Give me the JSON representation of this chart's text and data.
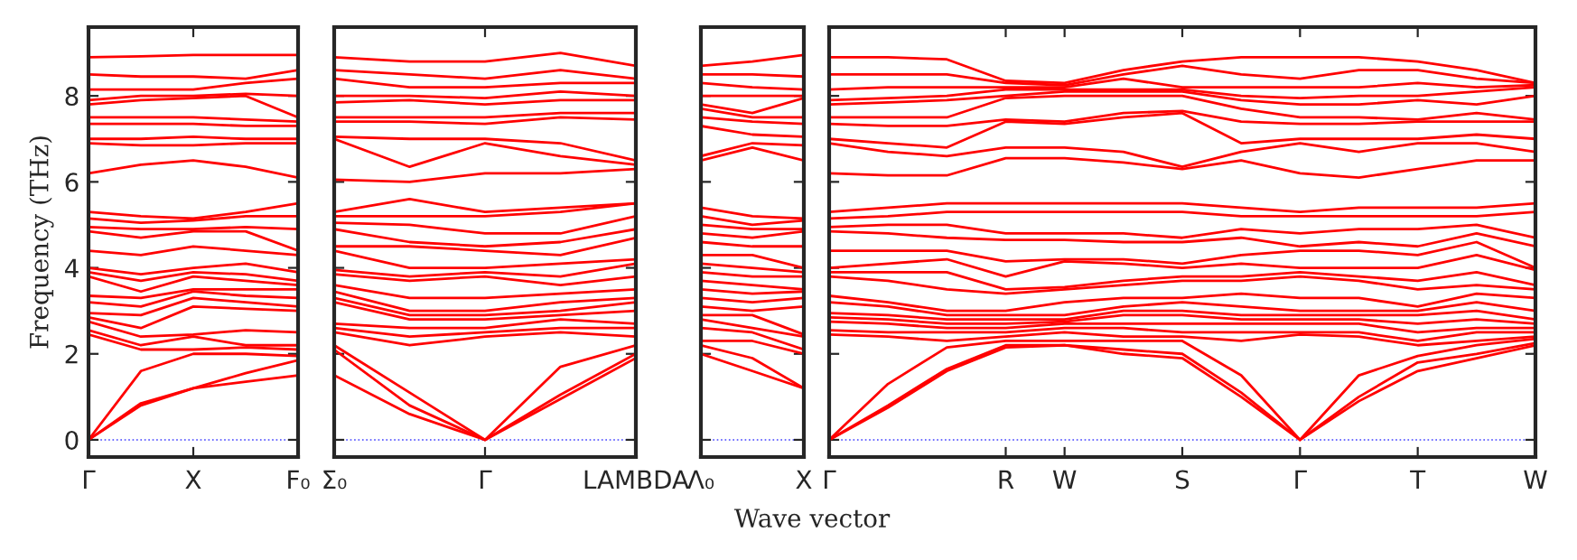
{
  "chart_data": [
    {
      "type": "line",
      "ylabel": "Frequency (THz)",
      "categories": [
        "Γ",
        null,
        "X",
        null,
        "F₀"
      ],
      "ylim": [
        -0.4,
        9.6
      ],
      "yticks": [
        0,
        2,
        4,
        6,
        8
      ],
      "ref_lines": [
        {
          "axis": "y",
          "value": 0,
          "color": "#4040ff",
          "line_style": "dotted"
        }
      ],
      "series": [
        {
          "color": "#ff0000",
          "values": [
            0,
            0.8,
            1.2,
            1.35,
            1.5
          ]
        },
        {
          "color": "#ff0000",
          "values": [
            0,
            0.85,
            1.2,
            1.55,
            1.85
          ]
        },
        {
          "color": "#ff0000",
          "values": [
            0,
            1.6,
            2.0,
            2.0,
            1.95
          ]
        },
        {
          "color": "#ff0000",
          "values": [
            2.45,
            2.1,
            2.1,
            2.15,
            2.1
          ]
        },
        {
          "color": "#ff0000",
          "values": [
            2.55,
            2.2,
            2.4,
            2.2,
            2.2
          ]
        },
        {
          "color": "#ff0000",
          "values": [
            2.75,
            2.4,
            2.45,
            2.55,
            2.5
          ]
        },
        {
          "color": "#ff0000",
          "values": [
            2.85,
            2.6,
            3.1,
            3.05,
            3.0
          ]
        },
        {
          "color": "#ff0000",
          "values": [
            2.95,
            2.9,
            3.3,
            3.2,
            3.1
          ]
        },
        {
          "color": "#ff0000",
          "values": [
            3.2,
            3.1,
            3.45,
            3.35,
            3.3
          ]
        },
        {
          "color": "#ff0000",
          "values": [
            3.35,
            3.3,
            3.5,
            3.5,
            3.5
          ]
        },
        {
          "color": "#ff0000",
          "values": [
            3.8,
            3.45,
            3.8,
            3.7,
            3.6
          ]
        },
        {
          "color": "#ff0000",
          "values": [
            3.9,
            3.7,
            3.9,
            3.85,
            3.7
          ]
        },
        {
          "color": "#ff0000",
          "values": [
            4.0,
            3.85,
            4.0,
            4.1,
            3.9
          ]
        },
        {
          "color": "#ff0000",
          "values": [
            4.4,
            4.3,
            4.5,
            4.4,
            4.3
          ]
        },
        {
          "color": "#ff0000",
          "values": [
            4.85,
            4.7,
            4.85,
            4.85,
            4.4
          ]
        },
        {
          "color": "#ff0000",
          "values": [
            4.95,
            4.9,
            4.9,
            4.95,
            4.9
          ]
        },
        {
          "color": "#ff0000",
          "values": [
            5.15,
            5.05,
            5.1,
            5.2,
            5.2
          ]
        },
        {
          "color": "#ff0000",
          "values": [
            5.3,
            5.2,
            5.15,
            5.3,
            5.5
          ]
        },
        {
          "color": "#ff0000",
          "values": [
            6.2,
            6.4,
            6.5,
            6.35,
            6.1
          ]
        },
        {
          "color": "#ff0000",
          "values": [
            6.9,
            6.85,
            6.85,
            6.9,
            6.9
          ]
        },
        {
          "color": "#ff0000",
          "values": [
            7.0,
            7.0,
            7.05,
            7.0,
            7.0
          ]
        },
        {
          "color": "#ff0000",
          "values": [
            7.35,
            7.35,
            7.35,
            7.3,
            7.3
          ]
        },
        {
          "color": "#ff0000",
          "values": [
            7.5,
            7.5,
            7.5,
            7.45,
            7.4
          ]
        },
        {
          "color": "#ff0000",
          "values": [
            7.8,
            7.9,
            7.95,
            8.0,
            7.5
          ]
        },
        {
          "color": "#ff0000",
          "values": [
            7.9,
            8.0,
            8.0,
            8.05,
            8.0
          ]
        },
        {
          "color": "#ff0000",
          "values": [
            8.15,
            8.15,
            8.15,
            8.3,
            8.4
          ]
        },
        {
          "color": "#ff0000",
          "values": [
            8.5,
            8.45,
            8.45,
            8.4,
            8.6
          ]
        },
        {
          "color": "#ff0000",
          "values": [
            8.9,
            8.92,
            8.95,
            8.95,
            8.95
          ]
        }
      ]
    },
    {
      "type": "line",
      "tick_labels": "x",
      "categories": [
        "Σ₀",
        null,
        "Γ",
        null,
        "LAMBDA"
      ],
      "ylim": [
        -0.4,
        9.6
      ],
      "yticks": [
        0,
        2,
        4,
        6,
        8
      ],
      "ref_lines": [
        {
          "axis": "y",
          "value": 0,
          "color": "#4040ff",
          "line_style": "dotted"
        }
      ],
      "series": [
        {
          "color": "#ff0000",
          "values": [
            1.5,
            0.6,
            0,
            0.95,
            1.9
          ]
        },
        {
          "color": "#ff0000",
          "values": [
            2.1,
            0.8,
            0,
            1.05,
            2.0
          ]
        },
        {
          "color": "#ff0000",
          "values": [
            2.2,
            1.1,
            0,
            1.7,
            2.2
          ]
        },
        {
          "color": "#ff0000",
          "values": [
            2.5,
            2.2,
            2.4,
            2.5,
            2.4
          ]
        },
        {
          "color": "#ff0000",
          "values": [
            2.6,
            2.4,
            2.5,
            2.6,
            2.6
          ]
        },
        {
          "color": "#ff0000",
          "values": [
            2.7,
            2.6,
            2.6,
            2.8,
            2.7
          ]
        },
        {
          "color": "#ff0000",
          "values": [
            3.2,
            2.8,
            2.8,
            2.9,
            3.0
          ]
        },
        {
          "color": "#ff0000",
          "values": [
            3.3,
            2.9,
            2.9,
            3.0,
            3.2
          ]
        },
        {
          "color": "#ff0000",
          "values": [
            3.45,
            3.0,
            3.0,
            3.2,
            3.3
          ]
        },
        {
          "color": "#ff0000",
          "values": [
            3.6,
            3.3,
            3.3,
            3.4,
            3.5
          ]
        },
        {
          "color": "#ff0000",
          "values": [
            3.85,
            3.7,
            3.8,
            3.6,
            3.8
          ]
        },
        {
          "color": "#ff0000",
          "values": [
            3.95,
            3.8,
            3.9,
            3.8,
            4.1
          ]
        },
        {
          "color": "#ff0000",
          "values": [
            4.4,
            4.0,
            4.0,
            4.1,
            4.2
          ]
        },
        {
          "color": "#ff0000",
          "values": [
            4.5,
            4.5,
            4.4,
            4.3,
            4.7
          ]
        },
        {
          "color": "#ff0000",
          "values": [
            4.9,
            4.6,
            4.5,
            4.6,
            4.9
          ]
        },
        {
          "color": "#ff0000",
          "values": [
            5.05,
            5.0,
            4.8,
            4.8,
            5.2
          ]
        },
        {
          "color": "#ff0000",
          "values": [
            5.2,
            5.2,
            5.2,
            5.3,
            5.5
          ]
        },
        {
          "color": "#ff0000",
          "values": [
            5.3,
            5.6,
            5.3,
            5.4,
            5.5
          ]
        },
        {
          "color": "#ff0000",
          "values": [
            6.05,
            6.0,
            6.2,
            6.2,
            6.3
          ]
        },
        {
          "color": "#ff0000",
          "values": [
            7.0,
            6.35,
            6.9,
            6.6,
            6.4
          ]
        },
        {
          "color": "#ff0000",
          "values": [
            7.05,
            7.0,
            7.0,
            6.9,
            6.5
          ]
        },
        {
          "color": "#ff0000",
          "values": [
            7.4,
            7.4,
            7.35,
            7.5,
            7.45
          ]
        },
        {
          "color": "#ff0000",
          "values": [
            7.5,
            7.5,
            7.5,
            7.6,
            7.6
          ]
        },
        {
          "color": "#ff0000",
          "values": [
            7.85,
            7.9,
            7.8,
            7.9,
            7.9
          ]
        },
        {
          "color": "#ff0000",
          "values": [
            8.0,
            8.0,
            7.95,
            8.1,
            8.0
          ]
        },
        {
          "color": "#ff0000",
          "values": [
            8.4,
            8.2,
            8.2,
            8.3,
            8.3
          ]
        },
        {
          "color": "#ff0000",
          "values": [
            8.6,
            8.5,
            8.4,
            8.6,
            8.4
          ]
        },
        {
          "color": "#ff0000",
          "values": [
            8.9,
            8.8,
            8.8,
            9.0,
            8.7
          ]
        }
      ]
    },
    {
      "type": "line",
      "tick_labels": "x",
      "categories": [
        "Λ₀",
        null,
        "X"
      ],
      "ylim": [
        -0.4,
        9.6
      ],
      "yticks": [
        0,
        2,
        4,
        6,
        8
      ],
      "ref_lines": [
        {
          "axis": "y",
          "value": 0,
          "color": "#4040ff",
          "line_style": "dotted"
        }
      ],
      "series": [
        {
          "color": "#ff0000",
          "values": [
            2.0,
            1.6,
            1.2
          ]
        },
        {
          "color": "#ff0000",
          "values": [
            2.2,
            1.9,
            1.2
          ]
        },
        {
          "color": "#ff0000",
          "values": [
            2.3,
            2.3,
            2.0
          ]
        },
        {
          "color": "#ff0000",
          "values": [
            2.6,
            2.5,
            2.1
          ]
        },
        {
          "color": "#ff0000",
          "values": [
            2.8,
            2.6,
            2.4
          ]
        },
        {
          "color": "#ff0000",
          "values": [
            2.9,
            2.9,
            2.45
          ]
        },
        {
          "color": "#ff0000",
          "values": [
            3.1,
            3.0,
            3.1
          ]
        },
        {
          "color": "#ff0000",
          "values": [
            3.3,
            3.2,
            3.3
          ]
        },
        {
          "color": "#ff0000",
          "values": [
            3.5,
            3.4,
            3.45
          ]
        },
        {
          "color": "#ff0000",
          "values": [
            3.7,
            3.6,
            3.5
          ]
        },
        {
          "color": "#ff0000",
          "values": [
            3.9,
            3.8,
            3.8
          ]
        },
        {
          "color": "#ff0000",
          "values": [
            4.1,
            4.0,
            3.9
          ]
        },
        {
          "color": "#ff0000",
          "values": [
            4.3,
            4.3,
            4.0
          ]
        },
        {
          "color": "#ff0000",
          "values": [
            4.6,
            4.5,
            4.5
          ]
        },
        {
          "color": "#ff0000",
          "values": [
            4.8,
            4.7,
            4.85
          ]
        },
        {
          "color": "#ff0000",
          "values": [
            5.0,
            4.9,
            4.9
          ]
        },
        {
          "color": "#ff0000",
          "values": [
            5.2,
            5.0,
            5.1
          ]
        },
        {
          "color": "#ff0000",
          "values": [
            5.4,
            5.2,
            5.15
          ]
        },
        {
          "color": "#ff0000",
          "values": [
            6.5,
            6.8,
            6.5
          ]
        },
        {
          "color": "#ff0000",
          "values": [
            6.6,
            6.9,
            6.85
          ]
        },
        {
          "color": "#ff0000",
          "values": [
            7.3,
            7.1,
            7.05
          ]
        },
        {
          "color": "#ff0000",
          "values": [
            7.5,
            7.4,
            7.35
          ]
        },
        {
          "color": "#ff0000",
          "values": [
            7.7,
            7.5,
            7.5
          ]
        },
        {
          "color": "#ff0000",
          "values": [
            7.8,
            7.6,
            7.95
          ]
        },
        {
          "color": "#ff0000",
          "values": [
            8.0,
            8.0,
            8.0
          ]
        },
        {
          "color": "#ff0000",
          "values": [
            8.3,
            8.2,
            8.15
          ]
        },
        {
          "color": "#ff0000",
          "values": [
            8.5,
            8.5,
            8.45
          ]
        },
        {
          "color": "#ff0000",
          "values": [
            8.7,
            8.8,
            8.95
          ]
        }
      ]
    },
    {
      "type": "line",
      "tick_labels": "x",
      "xlabel": "Wave vector",
      "categories": [
        "Γ",
        null,
        null,
        "R",
        "W",
        null,
        "S",
        null,
        "Γ",
        null,
        "T",
        null,
        "W"
      ],
      "ylim": [
        -0.4,
        9.6
      ],
      "yticks": [
        0,
        2,
        4,
        6,
        8
      ],
      "ref_lines": [
        {
          "axis": "y",
          "value": 0,
          "color": "#4040ff",
          "line_style": "dotted"
        }
      ],
      "series": [
        {
          "color": "#ff0000",
          "values": [
            0,
            0.75,
            1.6,
            2.15,
            2.2,
            2.0,
            1.9,
            1.0,
            0,
            0.9,
            1.6,
            1.9,
            2.2
          ]
        },
        {
          "color": "#ff0000",
          "values": [
            0,
            0.8,
            1.65,
            2.2,
            2.2,
            2.1,
            2.0,
            1.1,
            0,
            1.0,
            1.8,
            2.0,
            2.25
          ]
        },
        {
          "color": "#ff0000",
          "values": [
            0,
            1.3,
            2.15,
            2.3,
            2.3,
            2.3,
            2.3,
            1.5,
            0,
            1.5,
            1.95,
            2.2,
            2.35
          ]
        },
        {
          "color": "#ff0000",
          "values": [
            2.45,
            2.4,
            2.3,
            2.4,
            2.5,
            2.4,
            2.4,
            2.3,
            2.45,
            2.4,
            2.2,
            2.3,
            2.4
          ]
        },
        {
          "color": "#ff0000",
          "values": [
            2.55,
            2.5,
            2.5,
            2.5,
            2.6,
            2.6,
            2.5,
            2.5,
            2.5,
            2.5,
            2.3,
            2.5,
            2.5
          ]
        },
        {
          "color": "#ff0000",
          "values": [
            2.75,
            2.7,
            2.6,
            2.6,
            2.7,
            2.7,
            2.7,
            2.7,
            2.7,
            2.7,
            2.5,
            2.6,
            2.6
          ]
        },
        {
          "color": "#ff0000",
          "values": [
            2.85,
            2.8,
            2.7,
            2.7,
            2.75,
            2.9,
            2.9,
            2.8,
            2.8,
            2.8,
            2.7,
            2.8,
            2.7
          ]
        },
        {
          "color": "#ff0000",
          "values": [
            2.95,
            2.9,
            2.8,
            2.8,
            2.8,
            3.0,
            3.0,
            2.9,
            2.9,
            2.9,
            2.9,
            3.0,
            2.8
          ]
        },
        {
          "color": "#ff0000",
          "values": [
            3.2,
            3.1,
            2.9,
            2.9,
            2.9,
            3.1,
            3.2,
            3.1,
            3.0,
            3.0,
            3.0,
            3.2,
            3.0
          ]
        },
        {
          "color": "#ff0000",
          "values": [
            3.35,
            3.2,
            3.0,
            3.0,
            3.2,
            3.3,
            3.3,
            3.4,
            3.3,
            3.3,
            3.1,
            3.4,
            3.3
          ]
        },
        {
          "color": "#ff0000",
          "values": [
            3.8,
            3.7,
            3.5,
            3.4,
            3.5,
            3.6,
            3.7,
            3.7,
            3.8,
            3.7,
            3.5,
            3.6,
            3.5
          ]
        },
        {
          "color": "#ff0000",
          "values": [
            3.9,
            3.9,
            3.9,
            3.5,
            3.55,
            3.7,
            3.8,
            3.8,
            3.9,
            3.8,
            3.7,
            3.9,
            3.6
          ]
        },
        {
          "color": "#ff0000",
          "values": [
            4.0,
            4.1,
            4.2,
            3.8,
            4.15,
            4.1,
            4.0,
            4.1,
            4.0,
            4.0,
            4.0,
            4.3,
            3.95
          ]
        },
        {
          "color": "#ff0000",
          "values": [
            4.4,
            4.4,
            4.4,
            4.15,
            4.2,
            4.2,
            4.1,
            4.3,
            4.4,
            4.4,
            4.3,
            4.6,
            4.0
          ]
        },
        {
          "color": "#ff0000",
          "values": [
            4.85,
            4.8,
            4.7,
            4.65,
            4.65,
            4.6,
            4.6,
            4.7,
            4.5,
            4.6,
            4.5,
            4.8,
            4.5
          ]
        },
        {
          "color": "#ff0000",
          "values": [
            4.95,
            5.0,
            5.0,
            4.8,
            4.8,
            4.8,
            4.7,
            4.9,
            4.8,
            4.9,
            4.9,
            5.0,
            4.7
          ]
        },
        {
          "color": "#ff0000",
          "values": [
            5.15,
            5.2,
            5.3,
            5.3,
            5.3,
            5.3,
            5.3,
            5.2,
            5.2,
            5.2,
            5.2,
            5.2,
            5.3
          ]
        },
        {
          "color": "#ff0000",
          "values": [
            5.3,
            5.4,
            5.5,
            5.5,
            5.5,
            5.5,
            5.5,
            5.4,
            5.3,
            5.4,
            5.4,
            5.4,
            5.5
          ]
        },
        {
          "color": "#ff0000",
          "values": [
            6.2,
            6.15,
            6.15,
            6.55,
            6.55,
            6.45,
            6.3,
            6.5,
            6.2,
            6.1,
            6.3,
            6.5,
            6.5
          ]
        },
        {
          "color": "#ff0000",
          "values": [
            6.9,
            6.7,
            6.6,
            6.8,
            6.8,
            6.7,
            6.35,
            6.7,
            6.9,
            6.7,
            6.9,
            6.9,
            6.7
          ]
        },
        {
          "color": "#ff0000",
          "values": [
            7.0,
            6.9,
            6.8,
            7.4,
            7.35,
            7.5,
            7.6,
            6.9,
            7.0,
            7.0,
            7.0,
            7.1,
            7.0
          ]
        },
        {
          "color": "#ff0000",
          "values": [
            7.35,
            7.3,
            7.3,
            7.45,
            7.4,
            7.6,
            7.65,
            7.4,
            7.35,
            7.35,
            7.4,
            7.4,
            7.4
          ]
        },
        {
          "color": "#ff0000",
          "values": [
            7.5,
            7.5,
            7.5,
            7.95,
            8.0,
            8.0,
            8.0,
            7.7,
            7.5,
            7.5,
            7.45,
            7.6,
            7.45
          ]
        },
        {
          "color": "#ff0000",
          "values": [
            7.8,
            7.85,
            7.9,
            8.0,
            8.1,
            8.1,
            8.1,
            7.9,
            7.8,
            7.8,
            7.9,
            7.8,
            8.0
          ]
        },
        {
          "color": "#ff0000",
          "values": [
            7.9,
            7.95,
            8.0,
            8.15,
            8.15,
            8.15,
            8.15,
            8.0,
            7.95,
            8.0,
            8.0,
            8.1,
            8.2
          ]
        },
        {
          "color": "#ff0000",
          "values": [
            8.15,
            8.2,
            8.2,
            8.2,
            8.2,
            8.4,
            8.2,
            8.2,
            8.2,
            8.2,
            8.3,
            8.2,
            8.25
          ]
        },
        {
          "color": "#ff0000",
          "values": [
            8.5,
            8.5,
            8.5,
            8.3,
            8.25,
            8.5,
            8.7,
            8.5,
            8.4,
            8.6,
            8.6,
            8.4,
            8.3
          ]
        },
        {
          "color": "#ff0000",
          "values": [
            8.9,
            8.9,
            8.85,
            8.35,
            8.3,
            8.6,
            8.8,
            8.9,
            8.9,
            8.9,
            8.8,
            8.6,
            8.3
          ]
        }
      ]
    }
  ]
}
